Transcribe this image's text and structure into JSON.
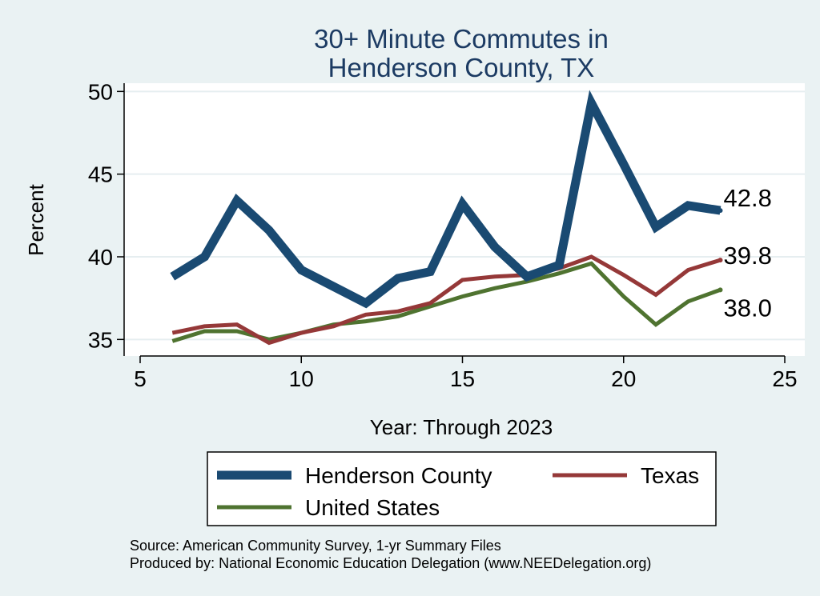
{
  "chart_data": {
    "type": "line",
    "title": [
      "30+ Minute Commutes in",
      "Henderson County, TX"
    ],
    "xlabel": "Year: Through 2023",
    "ylabel": "Percent",
    "xlim": [
      5,
      25
    ],
    "ylim": [
      34,
      50.5
    ],
    "xticks": [
      5,
      10,
      15,
      20,
      25
    ],
    "yticks": [
      35,
      40,
      45,
      50
    ],
    "grid": true,
    "x": [
      6,
      7,
      8,
      9,
      10,
      11,
      12,
      13,
      14,
      15,
      16,
      17,
      18,
      19,
      20,
      21,
      22,
      23
    ],
    "series": [
      {
        "name": "Henderson County",
        "color": "#1a4a72",
        "values": [
          38.8,
          40.0,
          43.4,
          41.6,
          39.2,
          38.2,
          37.2,
          38.7,
          39.1,
          43.2,
          40.6,
          38.8,
          39.5,
          49.3,
          45.6,
          41.8,
          43.1,
          42.8
        ],
        "end_label": "42.8"
      },
      {
        "name": "Texas",
        "color": "#953838",
        "values": [
          35.4,
          35.8,
          35.9,
          34.8,
          35.4,
          35.8,
          36.5,
          36.7,
          37.2,
          38.6,
          38.8,
          38.9,
          39.3,
          40.0,
          38.9,
          37.7,
          39.2,
          39.8
        ],
        "end_label": "39.8"
      },
      {
        "name": "United States",
        "color": "#4f7330",
        "values": [
          34.9,
          35.5,
          35.5,
          35.0,
          35.4,
          35.9,
          36.1,
          36.4,
          37.0,
          37.6,
          38.1,
          38.5,
          39.0,
          39.6,
          37.6,
          35.9,
          37.3,
          38.0
        ],
        "end_label": "38.0"
      }
    ]
  },
  "notes": {
    "source": "Source: American Community Survey, 1-yr Summary Files",
    "produced": "Produced by: National Economic Education Delegation (www.NEEDelegation.org)"
  }
}
